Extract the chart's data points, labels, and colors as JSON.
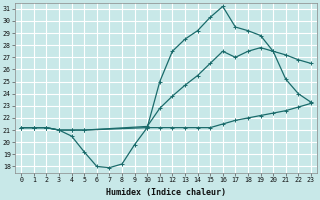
{
  "xlabel": "Humidex (Indice chaleur)",
  "bg_color": "#c8e8e8",
  "line_color": "#1a6b6b",
  "grid_color": "#ffffff",
  "xlim": [
    -0.5,
    23.5
  ],
  "ylim": [
    17.5,
    31.5
  ],
  "xticks": [
    0,
    1,
    2,
    3,
    4,
    5,
    6,
    7,
    8,
    9,
    10,
    11,
    12,
    13,
    14,
    15,
    16,
    17,
    18,
    19,
    20,
    21,
    22,
    23
  ],
  "yticks": [
    18,
    19,
    20,
    21,
    22,
    23,
    24,
    25,
    26,
    27,
    28,
    29,
    30,
    31
  ],
  "curve_dip_x": [
    0,
    1,
    2,
    3,
    4,
    5,
    6,
    7,
    8,
    9,
    10,
    11,
    12,
    13,
    14,
    15,
    16,
    17,
    18,
    19,
    20,
    21,
    22,
    23
  ],
  "curve_dip_y": [
    21.2,
    21.2,
    21.2,
    21.0,
    20.5,
    19.2,
    18.0,
    17.9,
    18.2,
    19.8,
    21.2,
    21.2,
    21.2,
    21.2,
    21.2,
    21.2,
    21.5,
    21.8,
    22.0,
    22.2,
    22.4,
    22.6,
    22.9,
    23.2
  ],
  "curve_peak_x": [
    0,
    1,
    2,
    3,
    4,
    5,
    10,
    11,
    12,
    13,
    14,
    15,
    16,
    17,
    18,
    19,
    20,
    21,
    22,
    23
  ],
  "curve_peak_y": [
    21.2,
    21.2,
    21.2,
    21.0,
    21.0,
    21.0,
    21.2,
    25.0,
    27.5,
    28.5,
    29.2,
    30.3,
    31.2,
    29.5,
    29.2,
    28.8,
    27.5,
    25.2,
    24.0,
    23.3
  ],
  "curve_line_x": [
    0,
    1,
    2,
    3,
    4,
    5,
    10,
    11,
    12,
    13,
    14,
    15,
    16,
    17,
    18,
    19,
    20,
    21,
    22,
    23
  ],
  "curve_line_y": [
    21.2,
    21.2,
    21.2,
    21.0,
    21.0,
    21.0,
    21.3,
    22.8,
    23.8,
    24.7,
    25.5,
    26.5,
    27.5,
    27.0,
    27.5,
    27.8,
    27.5,
    27.2,
    26.8,
    26.5
  ]
}
